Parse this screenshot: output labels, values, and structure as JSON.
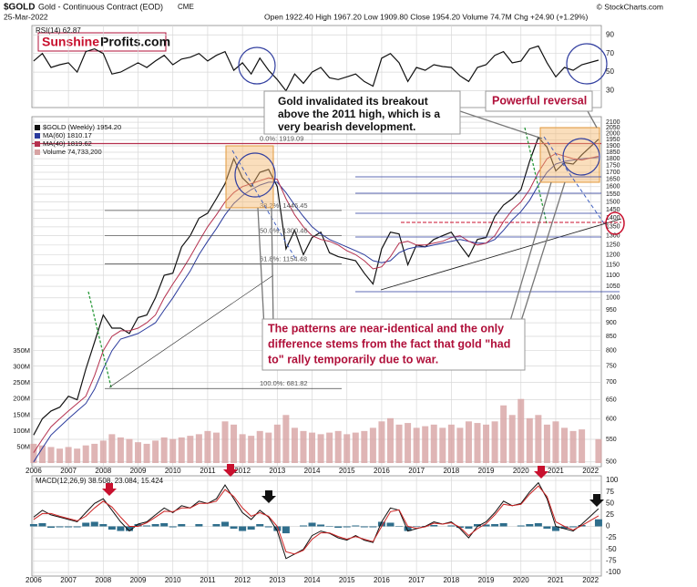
{
  "header": {
    "symbol": "$GOLD",
    "name": "Gold - Continuous Contract (EOD)",
    "exchange": "CME",
    "date": "25-Mar-2022",
    "copyright": "© StockCharts.com",
    "quote": "Open 1922.40  High 1967.20  Low 1909.80  Close 1954.20  Volume 74.7M  Chg +24.90 (+1.29%)",
    "logo": [
      "Sunshine",
      "Profits.com"
    ]
  },
  "annotations": {
    "breakout": [
      "Gold invalidated its breakout",
      "above the 2011 high, which is a",
      "very bearish development."
    ],
    "reversal": "Powerful reversal",
    "patterns": [
      "The patterns are near-identical and the only",
      "difference stems from the fact that gold \"had",
      "to\" rally temporarily due to war."
    ]
  },
  "chart_data": [
    {
      "type": "line",
      "log_scale": true,
      "grid": true,
      "x": [
        2006,
        2006.25,
        2006.5,
        2006.75,
        2007,
        2007.25,
        2007.5,
        2007.75,
        2008,
        2008.25,
        2008.5,
        2008.75,
        2009,
        2009.25,
        2009.5,
        2009.75,
        2010,
        2010.25,
        2010.5,
        2010.75,
        2011,
        2011.25,
        2011.5,
        2011.75,
        2012,
        2012.25,
        2012.5,
        2012.75,
        2013,
        2013.25,
        2013.5,
        2013.75,
        2014,
        2014.25,
        2014.5,
        2014.75,
        2015,
        2015.25,
        2015.5,
        2015.75,
        2016,
        2016.25,
        2016.5,
        2016.75,
        2017,
        2017.25,
        2017.5,
        2017.75,
        2018,
        2018.25,
        2018.5,
        2018.75,
        2019,
        2019.25,
        2019.5,
        2019.75,
        2020,
        2020.25,
        2020.5,
        2020.75,
        2021,
        2021.25,
        2021.5,
        2021.75,
        2022.23
      ],
      "xlim": [
        2005.95,
        2022.31
      ],
      "xticks": [
        2006,
        2007,
        2008,
        2009,
        2010,
        2011,
        2012,
        2013,
        2014,
        2015,
        2016,
        2017,
        2018,
        2019,
        2020,
        2021,
        2022
      ],
      "ylim": [
        490,
        2150
      ],
      "yticks": [
        500,
        550,
        600,
        650,
        700,
        750,
        800,
        850,
        900,
        950,
        1000,
        1050,
        1100,
        1150,
        1200,
        1250,
        1300,
        1350,
        1400,
        1450,
        1500,
        1550,
        1600,
        1650,
        1700,
        1750,
        1800,
        1850,
        1900,
        1950,
        2000,
        2050,
        2100
      ],
      "y2lim": [
        0,
        350000000
      ],
      "y2ticks": [
        {
          "value": 50000000,
          "label": "50M"
        },
        {
          "value": 100000000,
          "label": "100M"
        },
        {
          "value": 150000000,
          "label": "150M"
        },
        {
          "value": 200000000,
          "label": "200M"
        },
        {
          "value": 250000000,
          "label": "250M"
        },
        {
          "value": 300000000,
          "label": "300M"
        },
        {
          "value": 350000000,
          "label": "350M"
        }
      ],
      "series": [
        {
          "name": "$GOLD (Weekly) 1954.20",
          "color": "#111111",
          "values": [
            560,
            600,
            620,
            630,
            660,
            650,
            740,
            830,
            930,
            880,
            880,
            860,
            920,
            930,
            1000,
            1100,
            1110,
            1240,
            1300,
            1400,
            1430,
            1520,
            1620,
            1800,
            1660,
            1600,
            1700,
            1720,
            1600,
            1230,
            1330,
            1200,
            1290,
            1320,
            1210,
            1190,
            1180,
            1170,
            1110,
            1060,
            1230,
            1320,
            1310,
            1150,
            1250,
            1240,
            1280,
            1300,
            1320,
            1250,
            1190,
            1280,
            1290,
            1410,
            1480,
            1520,
            1580,
            1780,
            1970,
            1890,
            1710,
            1770,
            1760,
            1830,
            1954.2
          ]
        },
        {
          "name": "MA(60) 1810.17",
          "color": "#2a3a9c",
          "values": [
            500,
            530,
            560,
            580,
            600,
            620,
            640,
            680,
            740,
            800,
            840,
            850,
            860,
            880,
            900,
            950,
            1000,
            1060,
            1120,
            1200,
            1270,
            1340,
            1420,
            1490,
            1540,
            1580,
            1610,
            1630,
            1630,
            1560,
            1480,
            1410,
            1350,
            1310,
            1280,
            1260,
            1240,
            1220,
            1200,
            1170,
            1160,
            1170,
            1210,
            1230,
            1240,
            1240,
            1250,
            1260,
            1270,
            1280,
            1270,
            1260,
            1260,
            1280,
            1330,
            1390,
            1440,
            1510,
            1610,
            1700,
            1760,
            1780,
            1790,
            1800,
            1810.17
          ]
        },
        {
          "name": "MA(40) 1819.62",
          "color": "#b4304e",
          "values": [
            520,
            550,
            580,
            600,
            620,
            640,
            660,
            720,
            800,
            850,
            870,
            870,
            880,
            900,
            930,
            1000,
            1060,
            1120,
            1190,
            1270,
            1350,
            1420,
            1500,
            1560,
            1600,
            1620,
            1640,
            1660,
            1650,
            1520,
            1420,
            1350,
            1300,
            1280,
            1270,
            1250,
            1220,
            1200,
            1170,
            1130,
            1140,
            1190,
            1260,
            1270,
            1250,
            1250,
            1260,
            1270,
            1290,
            1300,
            1270,
            1250,
            1260,
            1300,
            1380,
            1450,
            1500,
            1580,
            1700,
            1800,
            1840,
            1820,
            1800,
            1790,
            1819.62
          ]
        },
        {
          "name": "Volume 74,733,200",
          "color": "#d7a3a3",
          "axis": "y2",
          "values": [
            60000000,
            55000000,
            50000000,
            45000000,
            50000000,
            45000000,
            55000000,
            60000000,
            70000000,
            90000000,
            80000000,
            75000000,
            65000000,
            60000000,
            70000000,
            80000000,
            75000000,
            80000000,
            85000000,
            90000000,
            100000000,
            95000000,
            130000000,
            120000000,
            90000000,
            85000000,
            100000000,
            95000000,
            120000000,
            150000000,
            110000000,
            100000000,
            95000000,
            90000000,
            95000000,
            100000000,
            90000000,
            95000000,
            100000000,
            110000000,
            130000000,
            140000000,
            120000000,
            125000000,
            110000000,
            115000000,
            120000000,
            110000000,
            120000000,
            110000000,
            130000000,
            125000000,
            120000000,
            130000000,
            180000000,
            150000000,
            200000000,
            140000000,
            150000000,
            120000000,
            130000000,
            110000000,
            100000000,
            105000000,
            74733200
          ]
        }
      ],
      "fib_levels": [
        {
          "label": "0.0%: 1919.09",
          "value": 1919.09
        },
        {
          "label": "38.2%: 1446.45",
          "value": 1446.45
        },
        {
          "label": "50.0%: 1300.46",
          "value": 1300.46
        },
        {
          "label": "61.8%: 1154.48",
          "value": 1154.48
        },
        {
          "label": "100.0%: 681.82",
          "value": 681.82
        }
      ]
    },
    {
      "type": "line",
      "title": "RSI(14) 62.87",
      "grid": true,
      "ylim": [
        12,
        100
      ],
      "yticks": [
        30,
        50,
        70,
        90
      ],
      "series": [
        {
          "color": "#111111",
          "values": [
            62,
            70,
            55,
            58,
            60,
            50,
            72,
            75,
            70,
            48,
            50,
            55,
            60,
            55,
            62,
            68,
            58,
            64,
            66,
            70,
            62,
            68,
            72,
            52,
            60,
            48,
            65,
            52,
            42,
            30,
            48,
            38,
            50,
            55,
            44,
            42,
            45,
            48,
            40,
            35,
            65,
            70,
            60,
            40,
            55,
            52,
            58,
            56,
            55,
            46,
            40,
            55,
            58,
            68,
            72,
            60,
            62,
            75,
            78,
            60,
            45,
            55,
            52,
            58,
            62.87
          ]
        }
      ]
    },
    {
      "type": "line",
      "title": "MACD(12,26,9) 38.508, 23.084, 15.424",
      "grid": true,
      "ylim": [
        -108,
        110
      ],
      "yticks": [
        -100,
        -75,
        -50,
        -25,
        0,
        25,
        50,
        75,
        100
      ],
      "xticks": [
        2006,
        2007,
        2008,
        2009,
        2010,
        2011,
        2012,
        2013,
        2014,
        2015,
        2016,
        2017,
        2018,
        2019,
        2020,
        2021,
        2022
      ],
      "series": [
        {
          "type": "bar",
          "color": "#2f6e8c",
          "values": [
            5,
            7,
            -3,
            -2,
            -2,
            -2,
            8,
            10,
            5,
            -7,
            -10,
            -10,
            5,
            2,
            5,
            7,
            -2,
            5,
            0,
            5,
            0,
            5,
            10,
            -5,
            -10,
            -7,
            5,
            -2,
            -10,
            -15,
            0,
            2,
            8,
            4,
            -1,
            -3,
            -2,
            2,
            -2,
            -2,
            10,
            8,
            -1,
            -10,
            -1,
            1,
            3,
            0,
            2,
            -3,
            -5,
            5,
            4,
            5,
            7,
            0,
            2,
            5,
            7,
            -5,
            -10,
            -5,
            -2,
            3,
            15.424
          ]
        },
        {
          "color": "#111111",
          "values": [
            20,
            35,
            25,
            20,
            15,
            10,
            30,
            50,
            60,
            35,
            10,
            -10,
            5,
            10,
            25,
            40,
            30,
            45,
            40,
            55,
            50,
            60,
            90,
            60,
            30,
            15,
            35,
            20,
            -10,
            -70,
            -60,
            -50,
            -20,
            -10,
            -15,
            -25,
            -30,
            -20,
            -30,
            -35,
            10,
            40,
            35,
            -10,
            -5,
            0,
            10,
            5,
            10,
            -5,
            -25,
            0,
            10,
            30,
            55,
            45,
            50,
            75,
            95,
            60,
            0,
            -5,
            -10,
            5,
            38.508
          ]
        },
        {
          "color": "#cc2222",
          "values": [
            15,
            28,
            28,
            22,
            17,
            12,
            22,
            40,
            55,
            42,
            20,
            0,
            0,
            8,
            20,
            33,
            32,
            40,
            40,
            50,
            50,
            55,
            80,
            65,
            40,
            22,
            30,
            22,
            0,
            -55,
            -60,
            -52,
            -28,
            -14,
            -14,
            -22,
            -28,
            -22,
            -28,
            -33,
            0,
            32,
            36,
            0,
            -4,
            -1,
            7,
            5,
            8,
            -2,
            -20,
            -5,
            6,
            25,
            48,
            45,
            48,
            70,
            88,
            65,
            10,
            0,
            -8,
            2,
            23.084
          ]
        }
      ]
    }
  ]
}
